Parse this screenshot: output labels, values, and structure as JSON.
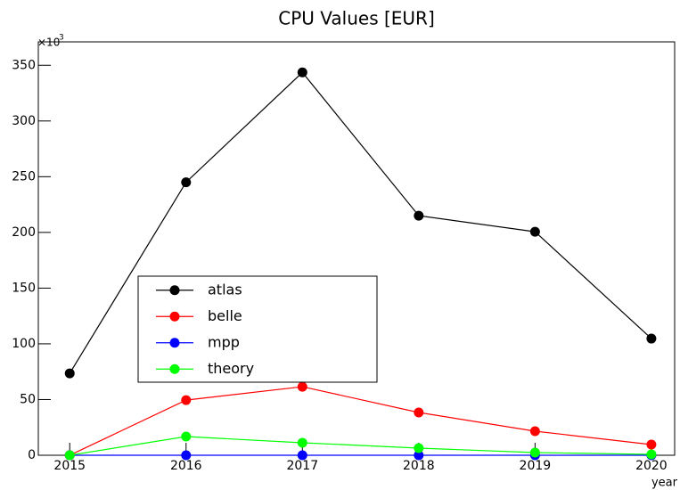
{
  "chart_data": {
    "type": "line",
    "title": "CPU Values [EUR]",
    "x_label": "year",
    "y_multiplier": "×10",
    "y_multiplier_exponent": "3",
    "x": [
      2015,
      2016,
      2017,
      2018,
      2019,
      2020
    ],
    "series": [
      {
        "name": "atlas",
        "color": "#000000",
        "values": [
          73.5,
          245,
          343.6,
          215,
          200.6,
          104.7
        ]
      },
      {
        "name": "belle",
        "color": "#ff0000",
        "values": [
          0,
          49.5,
          61.5,
          38.4,
          21.6,
          9.6
        ]
      },
      {
        "name": "mpp",
        "color": "#0000ff",
        "values": [
          0,
          0,
          0,
          0,
          0,
          0
        ]
      },
      {
        "name": "theory",
        "color": "#00ff00",
        "values": [
          0,
          16.8,
          11.2,
          6.4,
          2.4,
          0.8
        ]
      }
    ],
    "xlim": [
      2014.73,
      2020.2
    ],
    "xticks": [
      2015,
      2016,
      2017,
      2018,
      2019,
      2020
    ],
    "ylim": [
      0,
      371
    ],
    "yticks": [
      0,
      50,
      100,
      150,
      200,
      250,
      300,
      350
    ],
    "legend": "center-left"
  }
}
